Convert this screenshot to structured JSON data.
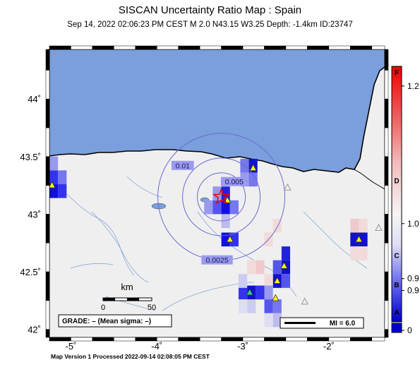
{
  "title": "SISCAN Uncertainty Ratio Map : Spain",
  "subtitle": "Sep 14, 2022 02:06:23 PM CEST   M 2.0   N43.15 W3.25   Depth: -1.4km   ID:23747",
  "footer": "Map Version 1 Processed 2022-09-14 02:08:05 PM CEST",
  "axes": {
    "lon_ticks": [
      -5,
      -4,
      -3,
      -2
    ],
    "lon_labels": [
      "-5˚",
      "-4˚",
      "-3˚",
      "-2˚"
    ],
    "lat_ticks": [
      44,
      43.5,
      43,
      42.5,
      42
    ],
    "lat_labels": [
      "44˚",
      "43.5˚",
      "43˚",
      "42.5˚",
      "42˚"
    ],
    "lon_range": [
      -5.25,
      -1.35
    ],
    "lat_range": [
      41.93,
      44.43
    ]
  },
  "epicenter": {
    "lat": 43.15,
    "lon": -3.25
  },
  "contour_labels": [
    {
      "text": "0.0025",
      "lat": 42.6,
      "lon": -3.3
    },
    {
      "text": "0.005",
      "lat": 43.28,
      "lon": -3.1
    },
    {
      "text": "0.01",
      "lat": 43.42,
      "lon": -3.7
    }
  ],
  "stations": [
    {
      "lat": 43.25,
      "lon": -5.22,
      "color": "#ffff00"
    },
    {
      "lat": 43.12,
      "lon": -3.18,
      "color": "#ffff00"
    },
    {
      "lat": 43.4,
      "lon": -2.88,
      "color": "#ffff00"
    },
    {
      "lat": 42.78,
      "lon": -3.15,
      "color": "#ffff00"
    },
    {
      "lat": 42.55,
      "lon": -2.52,
      "color": "#ffff00"
    },
    {
      "lat": 42.42,
      "lon": -2.6,
      "color": "#ffff00"
    },
    {
      "lat": 42.32,
      "lon": -2.92,
      "color": "#33cc99"
    },
    {
      "lat": 42.27,
      "lon": -2.62,
      "color": "#ffff00"
    },
    {
      "lat": 42.78,
      "lon": -1.65,
      "color": "#ffff00"
    },
    {
      "lat": 43.23,
      "lon": -2.48,
      "color": "none"
    },
    {
      "lat": 42.24,
      "lon": -2.28,
      "color": "none"
    },
    {
      "lat": 42.88,
      "lon": -1.42,
      "color": "none"
    }
  ],
  "cells": [
    {
      "lat": 43.32,
      "lon": -5.1,
      "color": "#7777ee"
    },
    {
      "lat": 43.2,
      "lon": -5.1,
      "color": "#3333ee"
    },
    {
      "lat": 43.32,
      "lon": -5.2,
      "color": "#3333ee"
    },
    {
      "lat": 43.2,
      "lon": -5.2,
      "color": "#1111dd"
    },
    {
      "lat": 43.44,
      "lon": -5.2,
      "color": "#9999ee"
    },
    {
      "lat": 43.06,
      "lon": -3.4,
      "color": "#9999ee"
    },
    {
      "lat": 43.06,
      "lon": -3.3,
      "color": "#5555ee"
    },
    {
      "lat": 43.06,
      "lon": -3.2,
      "color": "#1111dd"
    },
    {
      "lat": 43.06,
      "lon": -3.1,
      "color": "#7777ee"
    },
    {
      "lat": 43.18,
      "lon": -3.2,
      "color": "#2222dd"
    },
    {
      "lat": 43.18,
      "lon": -3.3,
      "color": "#9999ee"
    },
    {
      "lat": 42.94,
      "lon": -3.2,
      "color": "#bbbbee"
    },
    {
      "lat": 43.42,
      "lon": -2.88,
      "color": "#1111cc"
    },
    {
      "lat": 43.42,
      "lon": -2.98,
      "color": "#7777ee"
    },
    {
      "lat": 43.3,
      "lon": -2.88,
      "color": "#7777ee"
    },
    {
      "lat": 43.3,
      "lon": -2.98,
      "color": "#9999ee"
    },
    {
      "lat": 42.78,
      "lon": -3.2,
      "color": "#1111dd"
    },
    {
      "lat": 42.78,
      "lon": -3.1,
      "color": "#3333ee"
    },
    {
      "lat": 42.9,
      "lon": -2.6,
      "color": "#f3dada"
    },
    {
      "lat": 42.78,
      "lon": -2.7,
      "color": "#f3dada"
    },
    {
      "lat": 42.66,
      "lon": -2.5,
      "color": "#2222dd"
    },
    {
      "lat": 42.54,
      "lon": -2.5,
      "color": "#1111cc"
    },
    {
      "lat": 42.54,
      "lon": -2.6,
      "color": "#5555ee"
    },
    {
      "lat": 42.42,
      "lon": -2.6,
      "color": "#1111cc"
    },
    {
      "lat": 42.42,
      "lon": -2.5,
      "color": "#5555ee"
    },
    {
      "lat": 42.54,
      "lon": -2.8,
      "color": "#f0caca"
    },
    {
      "lat": 42.54,
      "lon": -2.9,
      "color": "#f3dada"
    },
    {
      "lat": 42.42,
      "lon": -2.7,
      "color": "#f3dada"
    },
    {
      "lat": 42.32,
      "lon": -2.9,
      "color": "#1111cc"
    },
    {
      "lat": 42.32,
      "lon": -3.0,
      "color": "#3333ee"
    },
    {
      "lat": 42.32,
      "lon": -2.8,
      "color": "#3333ee"
    },
    {
      "lat": 42.32,
      "lon": -2.7,
      "color": "#9999ee"
    },
    {
      "lat": 42.2,
      "lon": -2.7,
      "color": "#5555ee"
    },
    {
      "lat": 42.2,
      "lon": -2.6,
      "color": "#7777ee"
    },
    {
      "lat": 42.2,
      "lon": -2.9,
      "color": "#ccccf0"
    },
    {
      "lat": 42.2,
      "lon": -3.0,
      "color": "#ddddf3"
    },
    {
      "lat": 42.08,
      "lon": -2.6,
      "color": "#bbbbee"
    },
    {
      "lat": 42.08,
      "lon": -2.7,
      "color": "#ddddf3"
    },
    {
      "lat": 42.42,
      "lon": -3.0,
      "color": "#ccccf0"
    },
    {
      "lat": 42.9,
      "lon": -1.7,
      "color": "#f0caca"
    },
    {
      "lat": 42.9,
      "lon": -1.6,
      "color": "#f3dada"
    },
    {
      "lat": 42.78,
      "lon": -1.7,
      "color": "#1111cc"
    },
    {
      "lat": 42.78,
      "lon": -1.6,
      "color": "#1111cc"
    },
    {
      "lat": 42.66,
      "lon": -1.6,
      "color": "#f3dada"
    },
    {
      "lat": 42.66,
      "lon": -1.7,
      "color": "#f3dada"
    }
  ],
  "scale_bar": {
    "unit": "km",
    "tick_labels": [
      "0",
      "50"
    ]
  },
  "grade_box": "GRADE: – (Mean sigma: –)",
  "mi_legend": "MI = 6.0",
  "colorbar": {
    "letter_labels": [
      "F",
      "D",
      "C",
      "B",
      "A"
    ],
    "letter_values": [
      1.27,
      0.72,
      0.34,
      0.19,
      0.05
    ],
    "value_labels": [
      "1.2",
      "1.0",
      "0.9",
      "0.9",
      "0"
    ],
    "value_positions": [
      1.2,
      0.5,
      0.22,
      0.16,
      0.0
    ],
    "range": [
      0,
      1.3
    ]
  }
}
